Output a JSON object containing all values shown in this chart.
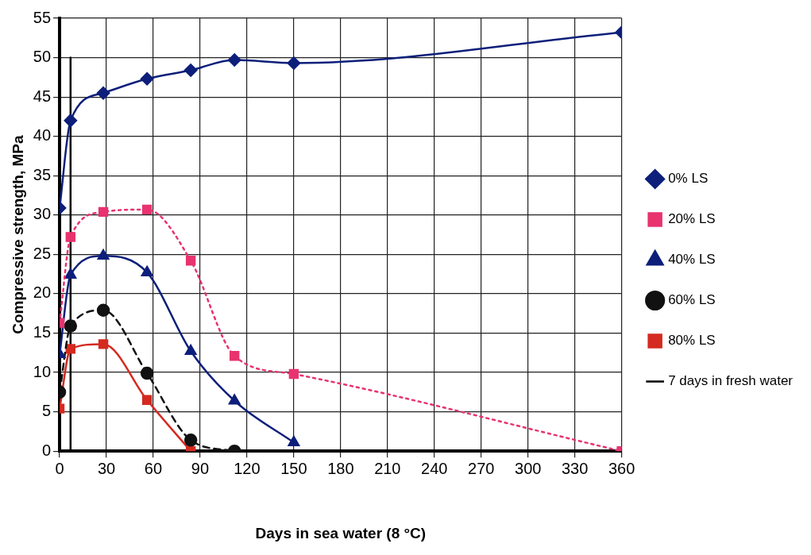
{
  "chart_data": {
    "type": "line",
    "xlabel": "Days in sea water (8 °C)",
    "ylabel": "Compressive strength, MPa",
    "xlim": [
      0,
      360
    ],
    "xticks": [
      0,
      30,
      60,
      90,
      120,
      150,
      180,
      210,
      240,
      270,
      300,
      330,
      360
    ],
    "ylim": [
      0,
      55
    ],
    "yticks": [
      0,
      5,
      10,
      15,
      20,
      25,
      30,
      35,
      40,
      45,
      50,
      55
    ],
    "grid": true,
    "legend": "right",
    "series": [
      {
        "name": "0% LS",
        "color": "#0d1f7a",
        "marker": "diamond",
        "line_style": "solid",
        "x": [
          0,
          7,
          28,
          56,
          84,
          112,
          150,
          360
        ],
        "values": [
          30.9,
          42.0,
          45.5,
          47.3,
          48.4,
          49.7,
          49.3,
          53.2
        ]
      },
      {
        "name": "20% LS",
        "color": "#e8336f",
        "marker": "square",
        "line_style": "dotted",
        "x": [
          0,
          7,
          28,
          56,
          84,
          112,
          150,
          360
        ],
        "values": [
          16.3,
          27.2,
          30.4,
          30.7,
          24.2,
          12.1,
          9.8,
          0
        ]
      },
      {
        "name": "40% LS",
        "color": "#0d1f7a",
        "marker": "triangle",
        "line_style": "solid",
        "x": [
          0,
          7,
          28,
          56,
          84,
          112,
          150
        ],
        "values": [
          12.3,
          22.4,
          24.8,
          22.7,
          12.7,
          6.4,
          1.1
        ]
      },
      {
        "name": "60% LS",
        "color": "#111111",
        "marker": "circle",
        "line_style": "dashed",
        "x": [
          0,
          7,
          28,
          56,
          84,
          112
        ],
        "values": [
          7.5,
          15.9,
          17.9,
          9.9,
          1.4,
          0
        ]
      },
      {
        "name": "80% LS",
        "color": "#d42a20",
        "marker": "square",
        "line_style": "solid",
        "x": [
          0,
          7,
          28,
          56,
          84
        ],
        "values": [
          5.4,
          13.0,
          13.6,
          6.5,
          0
        ]
      },
      {
        "name": "7 days in fresh water",
        "color": "#000000",
        "marker": "none",
        "line_style": "solid",
        "x": [
          7,
          7
        ],
        "values": [
          0,
          50
        ]
      }
    ]
  }
}
